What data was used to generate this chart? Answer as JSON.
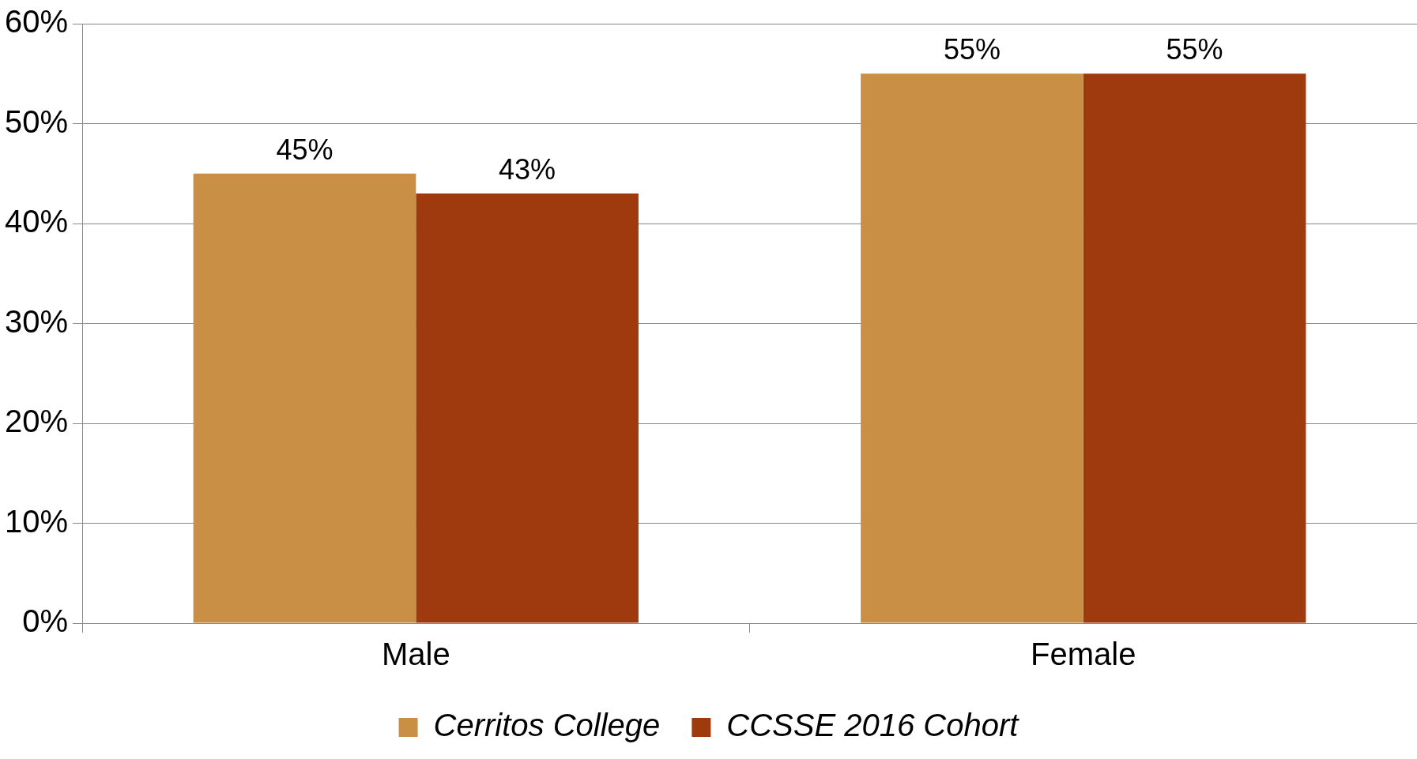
{
  "chart_data": {
    "type": "bar",
    "categories": [
      "Male",
      "Female"
    ],
    "series": [
      {
        "name": "Cerritos College",
        "color": "#c88f45",
        "values": [
          45,
          55
        ],
        "value_labels": [
          "45%",
          "55%"
        ]
      },
      {
        "name": "CCSSE 2016 Cohort",
        "color": "#9e3a0e",
        "values": [
          43,
          55
        ],
        "value_labels": [
          "43%",
          "55%"
        ]
      }
    ],
    "ylim": [
      0,
      60
    ],
    "yticks": [
      {
        "value": 0,
        "label": "0%"
      },
      {
        "value": 10,
        "label": "10%"
      },
      {
        "value": 20,
        "label": "20%"
      },
      {
        "value": 30,
        "label": "30%"
      },
      {
        "value": 40,
        "label": "40%"
      },
      {
        "value": 50,
        "label": "50%"
      },
      {
        "value": 60,
        "label": "60%"
      }
    ],
    "grid": "y",
    "legend": "bottom"
  }
}
